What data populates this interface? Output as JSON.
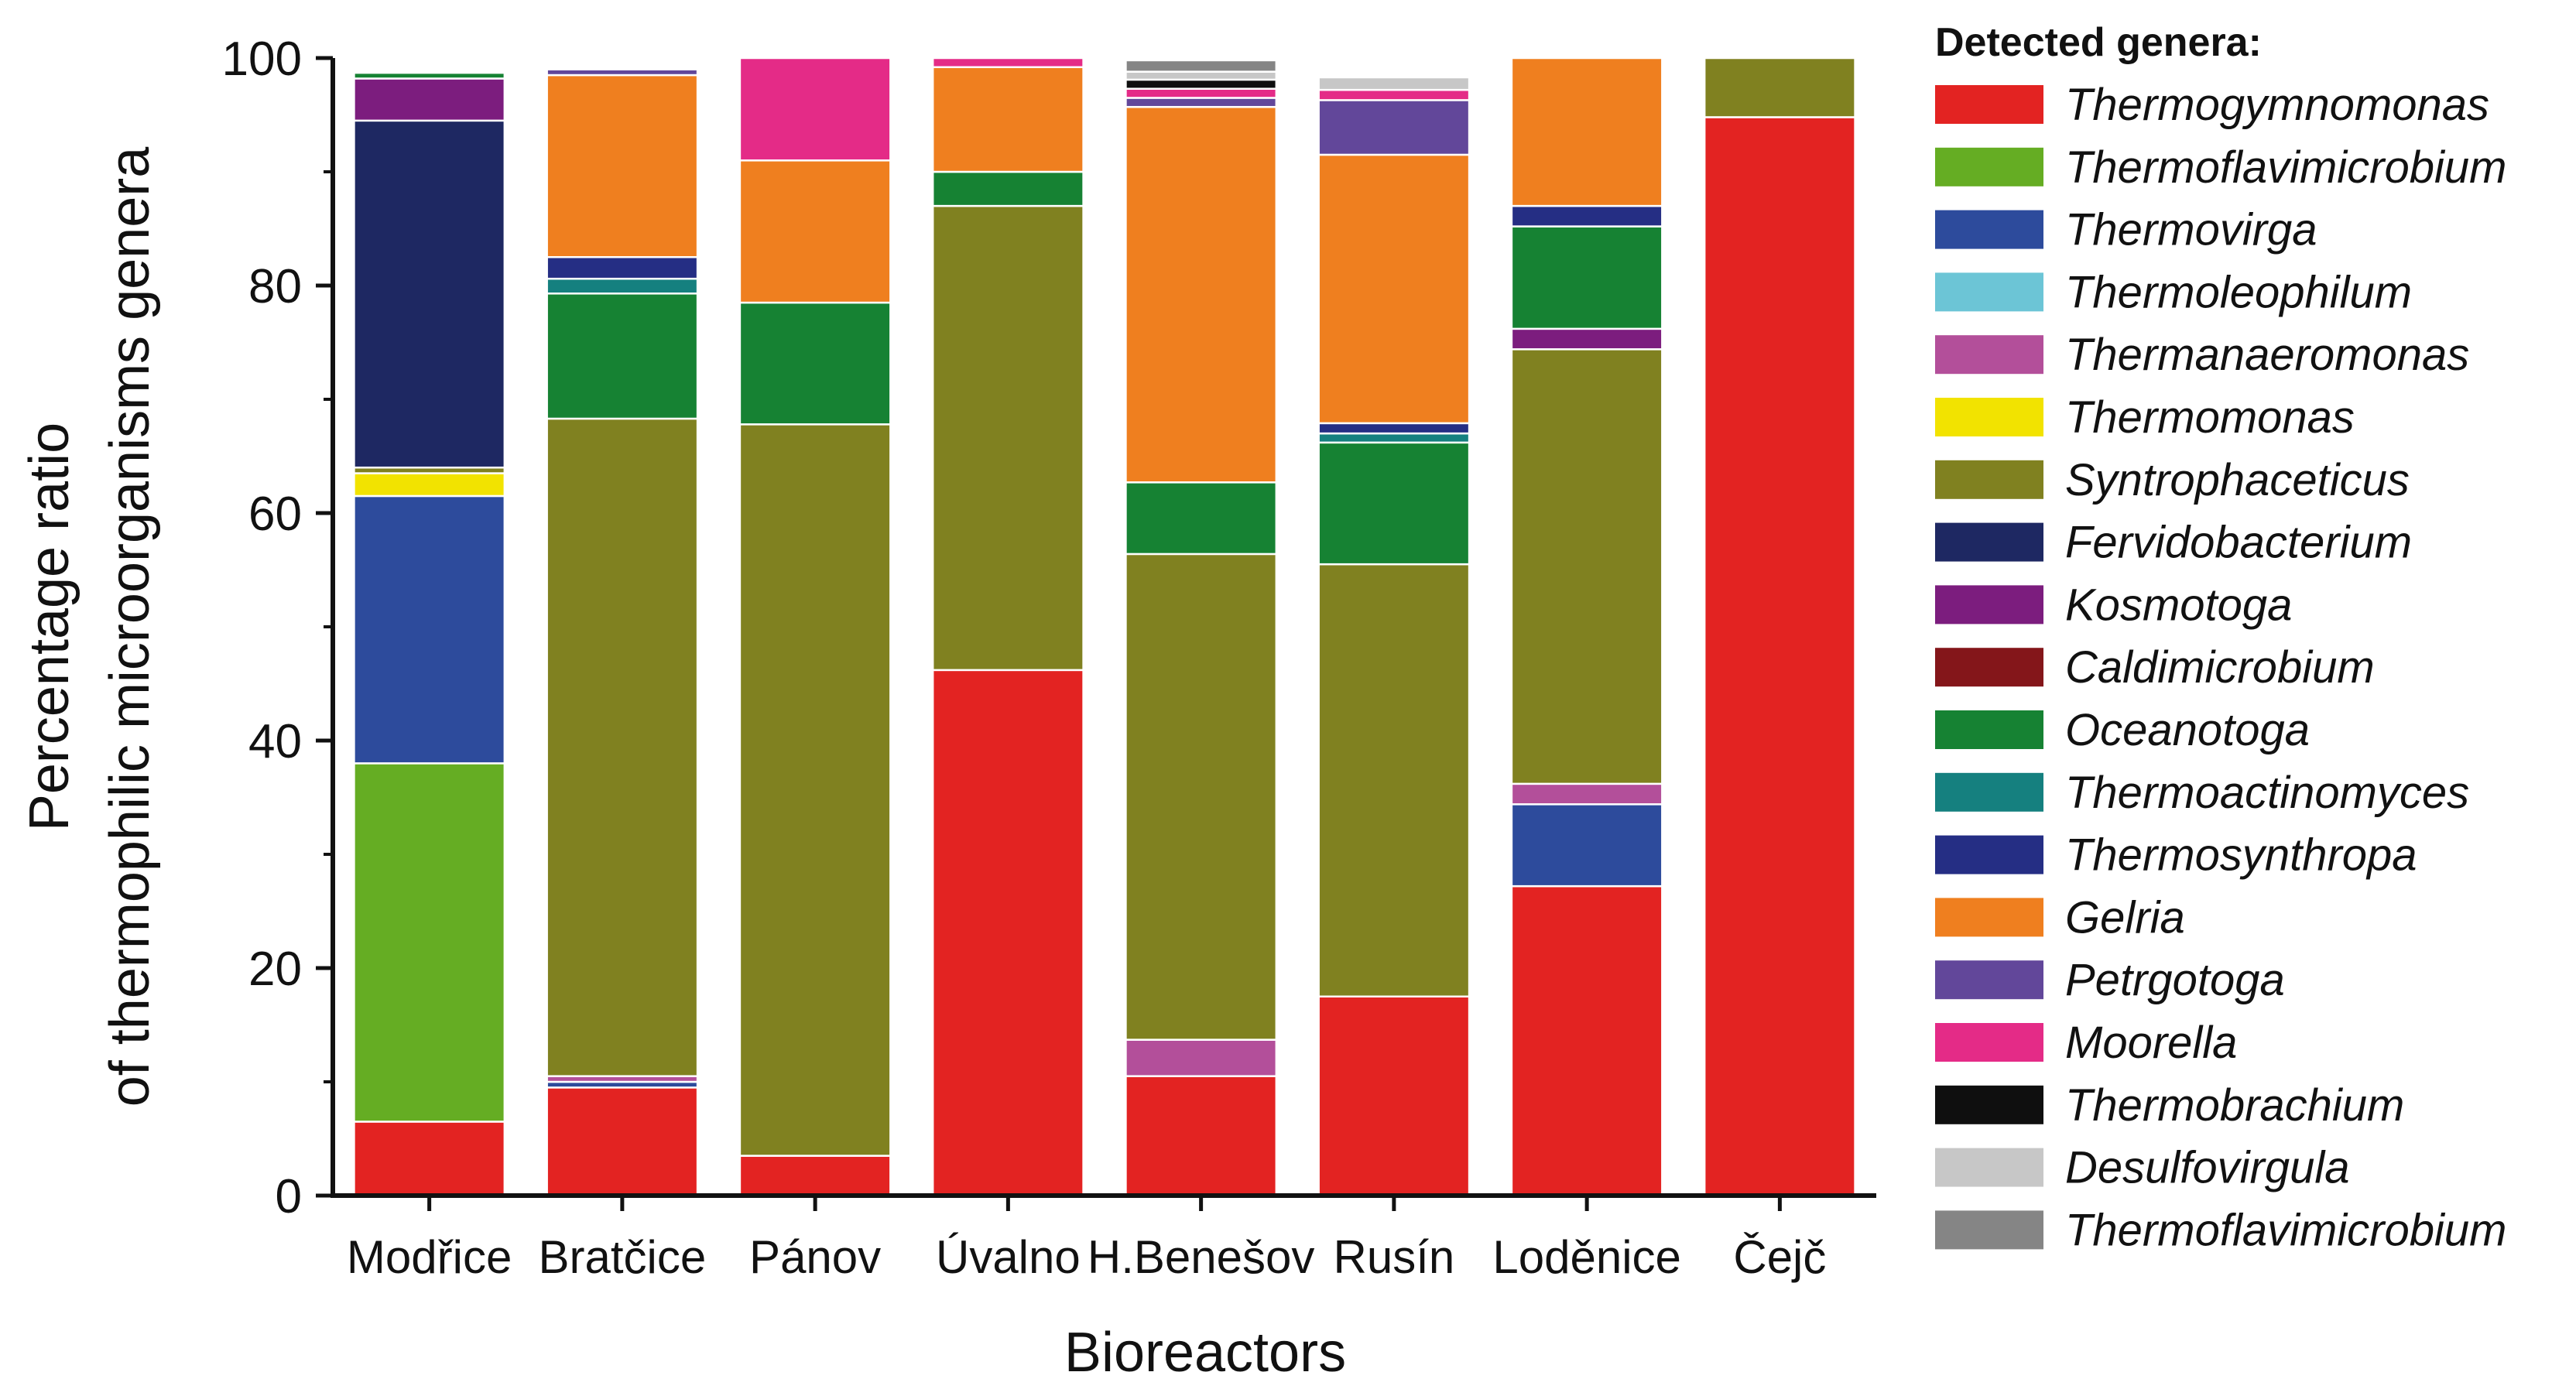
{
  "chart_data": {
    "type": "bar",
    "stacked": true,
    "title": "",
    "xlabel": "Bioreactors",
    "ylabel_line1": "Percentage ratio",
    "ylabel_line2": "of thermophilic microorganisms genera",
    "ylim": [
      0,
      100
    ],
    "yticks": [
      "0",
      "20",
      "40",
      "60",
      "80",
      "100"
    ],
    "categories": [
      "Modřice",
      "Bratčice",
      "Pánov",
      "Úvalno",
      "H.Benešov",
      "Rusín",
      "Loděnice",
      "Čejč"
    ],
    "legend_title": "Detected genera:",
    "legend_position": "right",
    "series": [
      {
        "name": "Thermogymnomonas",
        "color": "#e32322",
        "values": [
          6.5,
          9.5,
          3.5,
          46.2,
          10.5,
          17.5,
          27.2,
          94.8
        ]
      },
      {
        "name": "Thermoflavimicrobium",
        "color": "#65ad23",
        "values": [
          31.5,
          0,
          0,
          0,
          0,
          0,
          0,
          0
        ]
      },
      {
        "name": "Thermovirga",
        "color": "#2d4b9c",
        "values": [
          23.5,
          0.5,
          0,
          0,
          0,
          0,
          7.2,
          0
        ]
      },
      {
        "name": "Thermoleophilum",
        "color": "#6cc5d6",
        "values": [
          0,
          0,
          0,
          0,
          0,
          0,
          0,
          0
        ]
      },
      {
        "name": "Thermanaeromonas",
        "color": "#b34f9a",
        "values": [
          0,
          0.5,
          0,
          0,
          3.2,
          0,
          1.8,
          0
        ]
      },
      {
        "name": "Thermomonas",
        "color": "#f2e300",
        "values": [
          2.0,
          0,
          0,
          0,
          0,
          0,
          0,
          0
        ]
      },
      {
        "name": "Syntrophaceticus",
        "color": "#808120",
        "values": [
          0.5,
          57.8,
          64.3,
          40.8,
          42.7,
          38.0,
          38.2,
          5.2
        ]
      },
      {
        "name": "Fervidobacterium",
        "color": "#1e2862",
        "values": [
          30.5,
          0,
          0,
          0,
          0,
          0,
          0,
          0
        ]
      },
      {
        "name": "Kosmotoga",
        "color": "#7c1d7e",
        "values": [
          3.7,
          0,
          0,
          0,
          0,
          0,
          1.8,
          0
        ]
      },
      {
        "name": "Caldimicrobium",
        "color": "#84161a",
        "values": [
          0,
          0,
          0,
          0,
          0,
          0,
          0,
          0
        ]
      },
      {
        "name": "Oceanotoga",
        "color": "#168233",
        "values": [
          0.5,
          11.0,
          10.7,
          3.0,
          6.3,
          10.7,
          9.0,
          0
        ]
      },
      {
        "name": "Thermoactinomyces",
        "color": "#15807f",
        "values": [
          0,
          1.3,
          0,
          0,
          0,
          0.8,
          0,
          0
        ]
      },
      {
        "name": "Thermosynthropa",
        "color": "#252e84",
        "values": [
          0,
          1.9,
          0,
          0,
          0,
          0.9,
          1.8,
          0
        ]
      },
      {
        "name": "Gelria",
        "color": "#ef7f1f",
        "values": [
          0,
          16.0,
          12.5,
          9.2,
          33.0,
          23.6,
          13.0,
          0
        ]
      },
      {
        "name": "Petrgotoga",
        "color": "#62479a",
        "values": [
          0,
          0.5,
          0,
          0,
          0.8,
          4.8,
          0,
          0
        ]
      },
      {
        "name": "Moorella",
        "color": "#e42b87",
        "values": [
          0,
          0,
          9.0,
          0.8,
          0.8,
          0.9,
          0,
          0
        ]
      },
      {
        "name": "Thermobrachium",
        "color": "#0f0f0f",
        "values": [
          0,
          0,
          0,
          0,
          0.8,
          0,
          0,
          0
        ]
      },
      {
        "name": "Desulfovirgula",
        "color": "#c7c7c7",
        "values": [
          0,
          0,
          0,
          0,
          0.7,
          1.1,
          0,
          0
        ]
      },
      {
        "name": "Thermoflavimicrobium",
        "color": "#858585",
        "values": [
          0,
          0,
          0,
          0,
          1.0,
          0,
          0,
          0
        ]
      }
    ]
  }
}
